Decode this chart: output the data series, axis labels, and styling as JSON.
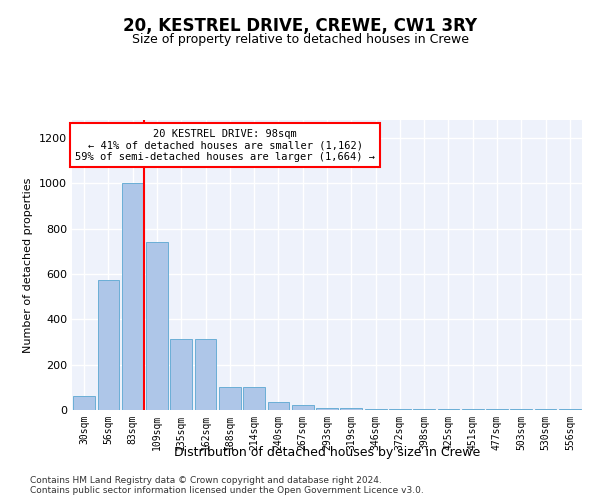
{
  "title": "20, KESTREL DRIVE, CREWE, CW1 3RY",
  "subtitle": "Size of property relative to detached houses in Crewe",
  "xlabel": "Distribution of detached houses by size in Crewe",
  "ylabel": "Number of detached properties",
  "bar_color": "#aec6e8",
  "bar_edge_color": "#6aaed6",
  "bar_categories": [
    "30sqm",
    "56sqm",
    "83sqm",
    "109sqm",
    "135sqm",
    "162sqm",
    "188sqm",
    "214sqm",
    "240sqm",
    "267sqm",
    "293sqm",
    "319sqm",
    "346sqm",
    "372sqm",
    "398sqm",
    "425sqm",
    "451sqm",
    "477sqm",
    "503sqm",
    "530sqm",
    "556sqm"
  ],
  "bar_values": [
    60,
    575,
    1000,
    740,
    315,
    315,
    100,
    100,
    35,
    20,
    10,
    10,
    5,
    5,
    5,
    5,
    5,
    5,
    5,
    5,
    5
  ],
  "red_line_x": 2,
  "annotation_text": "20 KESTREL DRIVE: 98sqm\n← 41% of detached houses are smaller (1,162)\n59% of semi-detached houses are larger (1,664) →",
  "annotation_box_color": "white",
  "annotation_box_edge_color": "red",
  "ylim": [
    0,
    1280
  ],
  "yticks": [
    0,
    200,
    400,
    600,
    800,
    1000,
    1200
  ],
  "background_color": "#eef2fb",
  "grid_color": "#ffffff",
  "footer_text": "Contains HM Land Registry data © Crown copyright and database right 2024.\nContains public sector information licensed under the Open Government Licence v3.0.",
  "fig_width": 6.0,
  "fig_height": 5.0
}
